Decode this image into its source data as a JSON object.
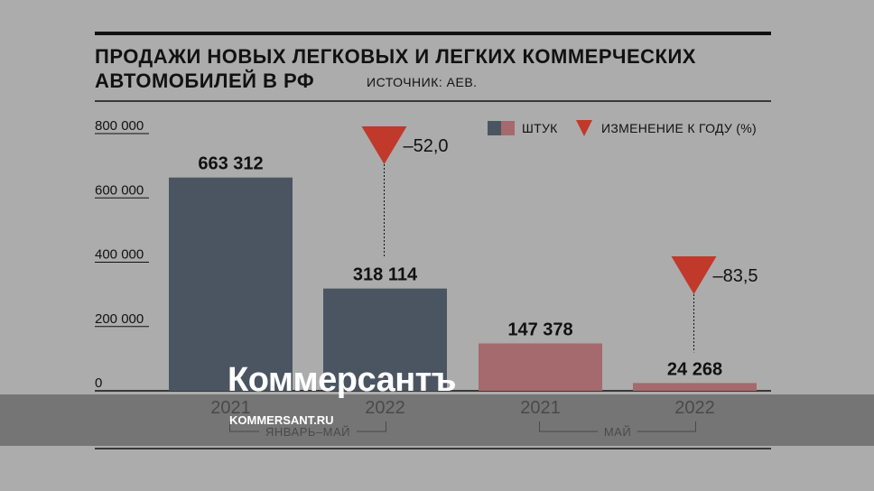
{
  "header": {
    "title_line1": "ПРОДАЖИ НОВЫХ ЛЕГКОВЫХ И ЛЕГКИХ КОММЕРЧЕСКИХ",
    "title_line2": "АВТОМОБИЛЕЙ В РФ",
    "source": "ИСТОЧНИК: АЕВ."
  },
  "legend": {
    "units_label": "ШТУК",
    "change_label": "ИЗМЕНЕНИЕ К ГОДУ (%)"
  },
  "watermark": {
    "logo": "Коммерсантъ",
    "url": "KOMMERSANT.RU"
  },
  "colors": {
    "background": "#acacac",
    "bar_jan_may": "#4b5562",
    "bar_may": "#a46a6d",
    "change_marker": "#c0392b",
    "text": "#111111"
  },
  "chart_data": {
    "type": "bar",
    "ylim": [
      0,
      800000
    ],
    "yticks": [
      0,
      200000,
      400000,
      600000,
      800000
    ],
    "ytick_labels": [
      "0",
      "200 000",
      "400 000",
      "600 000",
      "800 000"
    ],
    "categories": [
      "2021",
      "2022",
      "2021",
      "2022"
    ],
    "groups": [
      {
        "label": "ЯНВАРЬ–МАЙ",
        "members": [
          0,
          1
        ]
      },
      {
        "label": "МАЙ",
        "members": [
          2,
          3
        ]
      }
    ],
    "values": [
      663312,
      318114,
      147378,
      24268
    ],
    "value_labels": [
      "663 312",
      "318 114",
      "147 378",
      "24 268"
    ],
    "bar_color_keys": [
      "bar_jan_may",
      "bar_jan_may",
      "bar_may",
      "bar_may"
    ],
    "changes": [
      {
        "bar": 1,
        "value": -52.0,
        "label": "–52,0"
      },
      {
        "bar": 3,
        "value": -83.5,
        "label": "–83,5"
      }
    ],
    "legend_position": "top-right",
    "grid": false
  }
}
